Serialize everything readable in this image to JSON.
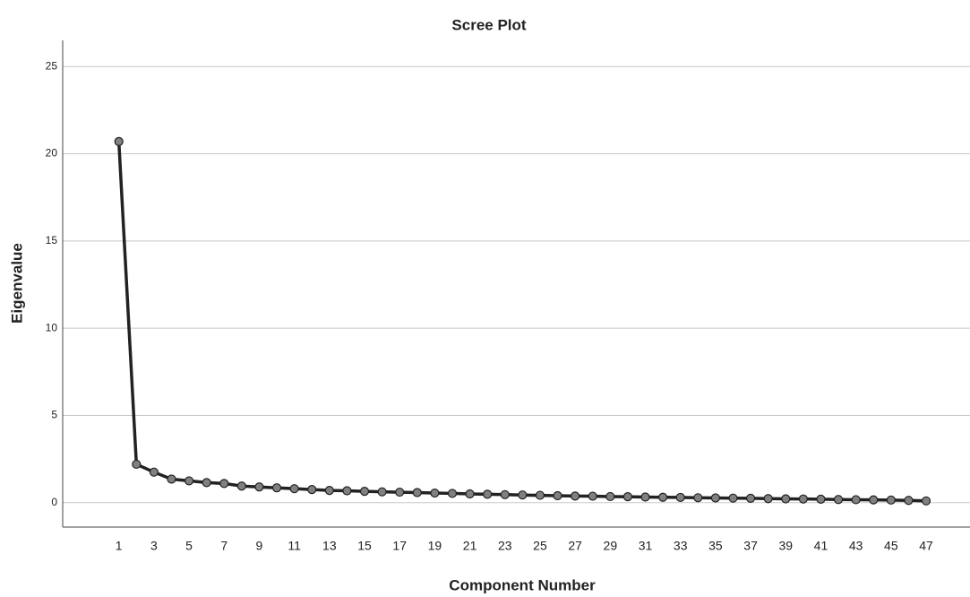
{
  "chart_data": {
    "type": "line",
    "title": "Scree Plot",
    "x_label": "Component Number",
    "y_label": "Eigenvalue",
    "x": [
      1,
      2,
      3,
      4,
      5,
      6,
      7,
      8,
      9,
      10,
      11,
      12,
      13,
      14,
      15,
      16,
      17,
      18,
      19,
      20,
      21,
      22,
      23,
      24,
      25,
      26,
      27,
      28,
      29,
      30,
      31,
      32,
      33,
      34,
      35,
      36,
      37,
      38,
      39,
      40,
      41,
      42,
      43,
      44,
      45,
      46,
      47
    ],
    "values": [
      20.7,
      2.2,
      1.75,
      1.35,
      1.25,
      1.15,
      1.1,
      0.95,
      0.9,
      0.85,
      0.8,
      0.75,
      0.7,
      0.68,
      0.65,
      0.62,
      0.6,
      0.58,
      0.55,
      0.53,
      0.5,
      0.48,
      0.46,
      0.44,
      0.42,
      0.4,
      0.38,
      0.37,
      0.35,
      0.34,
      0.32,
      0.31,
      0.3,
      0.28,
      0.27,
      0.26,
      0.25,
      0.23,
      0.22,
      0.21,
      0.2,
      0.18,
      0.17,
      0.16,
      0.15,
      0.13,
      0.1
    ],
    "color": "#222222",
    "marker_color": "#808080",
    "xlim": [
      -2.2,
      49.5
    ],
    "ylim": [
      -1.4,
      26.5
    ],
    "xticks": [
      1,
      3,
      5,
      7,
      9,
      11,
      13,
      15,
      17,
      19,
      21,
      23,
      25,
      27,
      29,
      31,
      33,
      35,
      37,
      39,
      41,
      43,
      45,
      47
    ],
    "yticks": [
      0,
      5,
      10,
      15,
      20,
      25
    ],
    "grid": true
  }
}
